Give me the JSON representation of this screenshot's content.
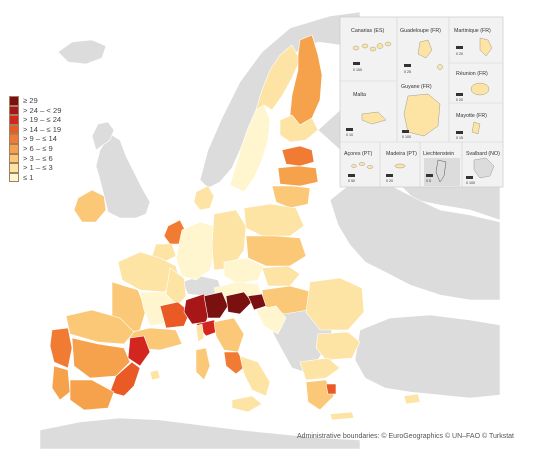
{
  "legend": {
    "items": [
      {
        "label": "≥ 29",
        "color": "#7a1010"
      },
      {
        "label": "> 24 – < 29",
        "color": "#a71717"
      },
      {
        "label": "> 19 – ≤ 24",
        "color": "#d3261e"
      },
      {
        "label": "> 14 – ≤ 19",
        "color": "#ea5a24"
      },
      {
        "label": "> 9 – ≤ 14",
        "color": "#f27b34"
      },
      {
        "label": "> 6 – ≤ 9",
        "color": "#f6a24c"
      },
      {
        "label": "> 3 – ≤ 6",
        "color": "#fbc877"
      },
      {
        "label": "> 1 – ≤ 3",
        "color": "#fde4a4"
      },
      {
        "label": "≤ 1",
        "color": "#fff6cf"
      }
    ]
  },
  "no_data_color": "#dcdcdc",
  "sea_color": "#ffffff",
  "insets": [
    {
      "name": "Canarias (ES)",
      "scale": "0   100"
    },
    {
      "name": "Guadeloupe (FR)",
      "scale": "0   25"
    },
    {
      "name": "Martinique (FR)",
      "scale": "0   20"
    },
    {
      "name": "Réunion (FR)",
      "scale": "0   20"
    },
    {
      "name": "Malta",
      "scale": "0   10"
    },
    {
      "name": "Guyane (FR)",
      "scale": "0   100"
    },
    {
      "name": "Mayotte (FR)",
      "scale": "0   15"
    },
    {
      "name": "Açores (PT)",
      "scale": "0   50"
    },
    {
      "name": "Madeira (PT)",
      "scale": "0   20"
    },
    {
      "name": "Liechtenstein",
      "scale": "0   5"
    },
    {
      "name": "Svalbard (NO)",
      "scale": "0   100"
    }
  ],
  "credit": "Administrative boundaries: © EuroGeographics © UN–FAO © Turkstat"
}
